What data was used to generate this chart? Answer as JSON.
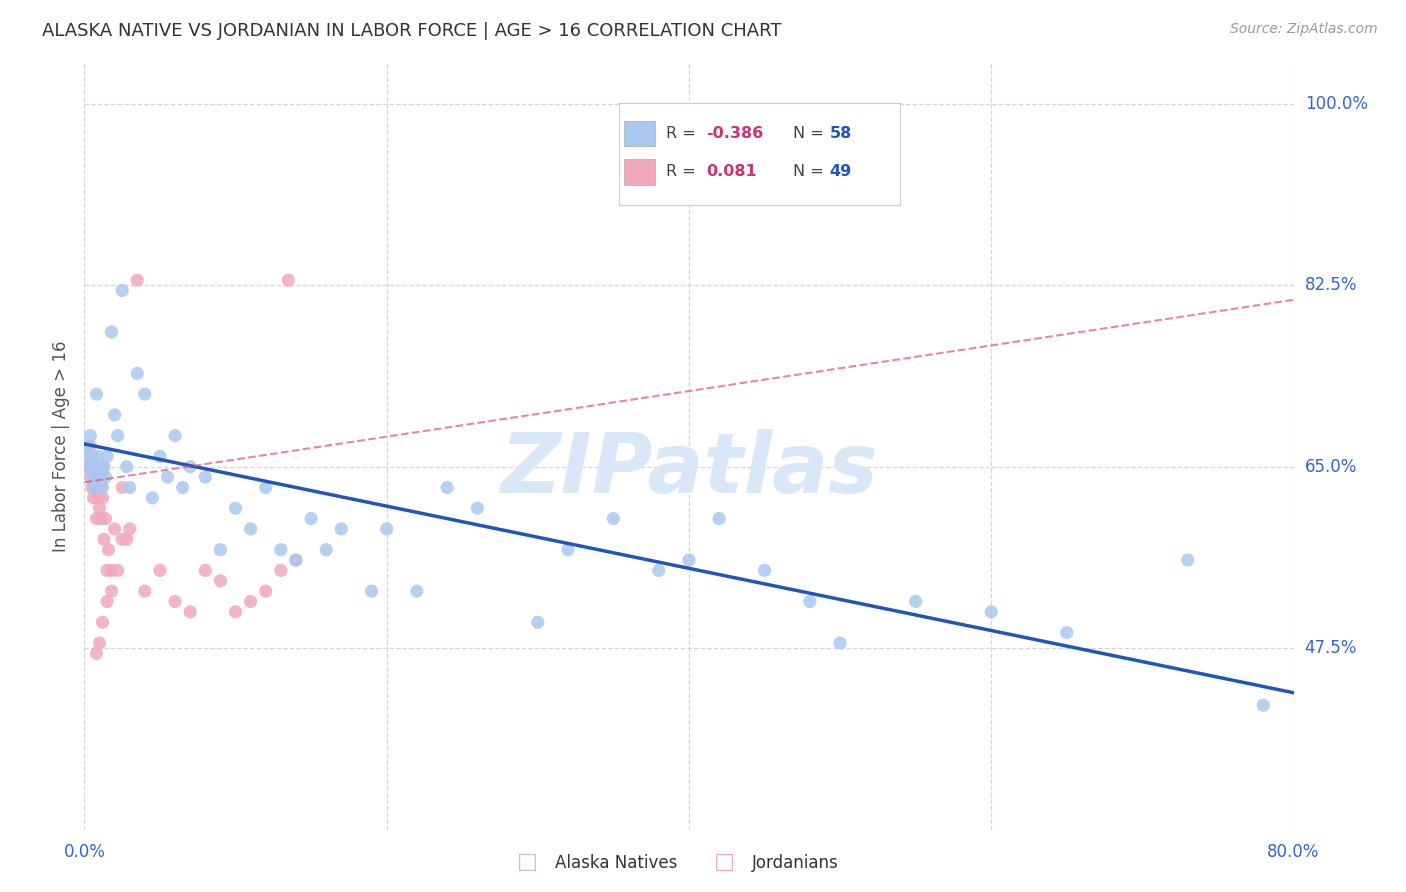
{
  "title": "ALASKA NATIVE VS JORDANIAN IN LABOR FORCE | AGE > 16 CORRELATION CHART",
  "source": "Source: ZipAtlas.com",
  "ylabel": "In Labor Force | Age > 16",
  "xlim": [
    0.0,
    0.8
  ],
  "ylim": [
    0.3,
    1.04
  ],
  "blue_R": -0.386,
  "blue_N": 58,
  "pink_R": 0.081,
  "pink_N": 49,
  "blue_color": "#A8C8F0",
  "pink_color": "#F0A8BC",
  "blue_line_color": "#2255BB",
  "pink_line_color": "#DD5577",
  "legend_R_color": "#CC3377",
  "legend_N_color": "#2255BB",
  "background_color": "#FFFFFF",
  "grid_color": "#CCCCCC",
  "title_color": "#333333",
  "watermark_color": "#D8E8F8",
  "ytick_vals": [
    0.475,
    0.65,
    0.825,
    1.0
  ],
  "ytick_labels": [
    "47.5%",
    "65.0%",
    "82.5%",
    "100.0%"
  ],
  "blue_x": [
    0.002,
    0.003,
    0.004,
    0.004,
    0.005,
    0.006,
    0.007,
    0.008,
    0.009,
    0.01,
    0.011,
    0.012,
    0.013,
    0.014,
    0.015,
    0.018,
    0.02,
    0.022,
    0.025,
    0.028,
    0.03,
    0.035,
    0.04,
    0.045,
    0.05,
    0.055,
    0.06,
    0.065,
    0.07,
    0.08,
    0.09,
    0.1,
    0.11,
    0.12,
    0.13,
    0.14,
    0.15,
    0.16,
    0.17,
    0.19,
    0.2,
    0.22,
    0.24,
    0.26,
    0.3,
    0.32,
    0.35,
    0.38,
    0.4,
    0.42,
    0.45,
    0.48,
    0.5,
    0.55,
    0.6,
    0.65,
    0.73,
    0.78
  ],
  "blue_y": [
    0.67,
    0.66,
    0.65,
    0.68,
    0.64,
    0.63,
    0.65,
    0.72,
    0.66,
    0.65,
    0.64,
    0.63,
    0.65,
    0.64,
    0.66,
    0.78,
    0.7,
    0.68,
    0.82,
    0.65,
    0.63,
    0.74,
    0.72,
    0.62,
    0.66,
    0.64,
    0.68,
    0.63,
    0.65,
    0.64,
    0.57,
    0.61,
    0.59,
    0.63,
    0.57,
    0.56,
    0.6,
    0.57,
    0.59,
    0.53,
    0.59,
    0.53,
    0.63,
    0.61,
    0.5,
    0.57,
    0.6,
    0.55,
    0.56,
    0.6,
    0.55,
    0.52,
    0.48,
    0.52,
    0.51,
    0.49,
    0.56,
    0.42
  ],
  "pink_x": [
    0.002,
    0.003,
    0.004,
    0.004,
    0.005,
    0.005,
    0.006,
    0.006,
    0.007,
    0.007,
    0.008,
    0.008,
    0.009,
    0.009,
    0.01,
    0.01,
    0.011,
    0.011,
    0.012,
    0.012,
    0.013,
    0.014,
    0.015,
    0.016,
    0.018,
    0.02,
    0.022,
    0.025,
    0.028,
    0.03,
    0.035,
    0.04,
    0.05,
    0.06,
    0.07,
    0.08,
    0.09,
    0.1,
    0.11,
    0.12,
    0.13,
    0.135,
    0.14,
    0.025,
    0.018,
    0.015,
    0.012,
    0.01,
    0.008
  ],
  "pink_y": [
    0.65,
    0.65,
    0.64,
    0.67,
    0.63,
    0.66,
    0.62,
    0.65,
    0.64,
    0.63,
    0.6,
    0.63,
    0.62,
    0.65,
    0.64,
    0.61,
    0.6,
    0.63,
    0.62,
    0.65,
    0.58,
    0.6,
    0.55,
    0.57,
    0.55,
    0.59,
    0.55,
    0.63,
    0.58,
    0.59,
    0.83,
    0.53,
    0.55,
    0.52,
    0.51,
    0.55,
    0.54,
    0.51,
    0.52,
    0.53,
    0.55,
    0.83,
    0.56,
    0.58,
    0.53,
    0.52,
    0.5,
    0.48,
    0.47
  ]
}
